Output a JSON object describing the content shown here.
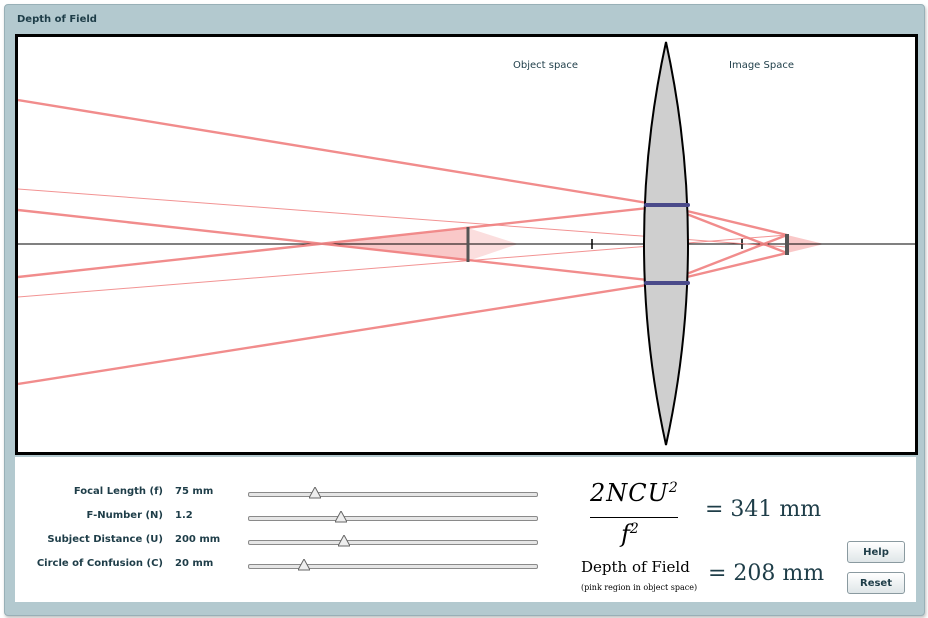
{
  "window": {
    "title": "Depth of Field"
  },
  "canvas": {
    "object_space_label": "Object space",
    "image_space_label": "Image Space"
  },
  "controls": [
    {
      "label": "Focal Length (f)",
      "value": "75 mm",
      "slider_fraction": 0.23
    },
    {
      "label": "F-Number (N)",
      "value": "1.2",
      "slider_fraction": 0.32
    },
    {
      "label": "Subject Distance (U)",
      "value": "200 mm",
      "slider_fraction": 0.33
    },
    {
      "label": "Circle of Confusion (C)",
      "value": "20 mm",
      "slider_fraction": 0.19
    }
  ],
  "formula": {
    "numerator": "2NCU",
    "numerator_exp": "2",
    "denominator": "f",
    "denominator_exp": "2",
    "result": "= 341 mm",
    "dof_label": "Depth of Field",
    "dof_note": "(pink region in object space)",
    "dof_result": "= 208 mm"
  },
  "buttons": {
    "help": "Help",
    "reset": "Reset"
  },
  "colors": {
    "ray": "#f08080",
    "pink_region": "#f7b5b5",
    "lens_fill": "#cfcfcf",
    "aperture": "#4a4a8a",
    "panel_bg": "#b3c9cf",
    "text": "#1e3d48"
  }
}
